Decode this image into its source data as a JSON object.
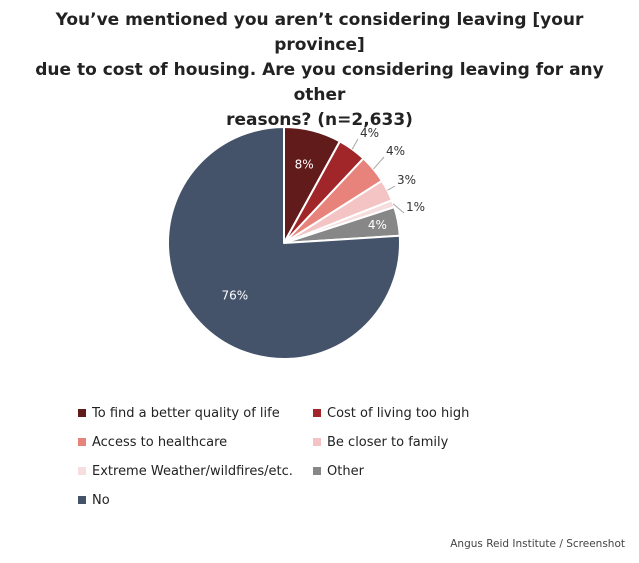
{
  "chart_data": {
    "type": "pie",
    "title_lines": [
      "You’ve mentioned you aren’t considering leaving [your province]",
      "due to cost of housing. Are you considering leaving for any other",
      "reasons? (n=2,633)"
    ],
    "series": [
      {
        "name": "To find a better quality of life",
        "value": 8,
        "label": "8%",
        "color": "#621b1b"
      },
      {
        "name": "Cost of living too high",
        "value": 4,
        "label": "4%",
        "color": "#a1262a"
      },
      {
        "name": "Access to healthcare",
        "value": 4,
        "label": "4%",
        "color": "#e8837c"
      },
      {
        "name": "Be closer to family",
        "value": 3,
        "label": "3%",
        "color": "#f4c3c3"
      },
      {
        "name": "Extreme Weather/wildfires/etc.",
        "value": 1,
        "label": "1%",
        "color": "#f6dede"
      },
      {
        "name": "Other",
        "value": 4,
        "label": "4%",
        "color": "#878787"
      },
      {
        "name": "No",
        "value": 76,
        "label": "76%",
        "color": "#44536a"
      }
    ],
    "legend_position": "bottom"
  },
  "credit": "Angus Reid Institute / Screenshot"
}
